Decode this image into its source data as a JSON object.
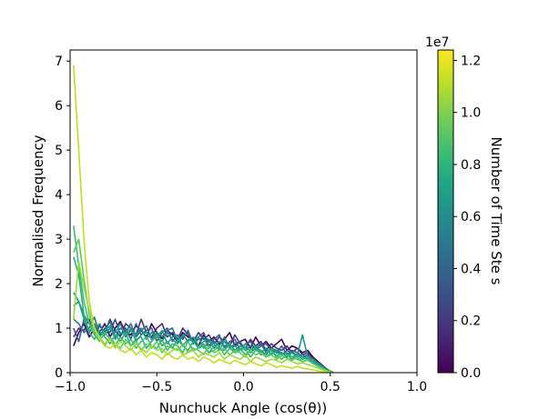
{
  "chart_data": {
    "type": "line",
    "title": "",
    "xlabel": "Nunchuck Angle (cos(θ))",
    "ylabel": "Normalised Frequency",
    "xlim": [
      -1.0,
      1.0
    ],
    "ylim": [
      0,
      7.25
    ],
    "x_ticks": [
      -1.0,
      -0.5,
      0.0,
      0.5,
      1.0
    ],
    "x_tick_labels": [
      "−1.0",
      "−0.5",
      "0.0",
      "0.5",
      "1.0"
    ],
    "y_ticks": [
      0,
      1,
      2,
      3,
      4,
      5,
      6,
      7
    ],
    "y_tick_labels": [
      "0",
      "1",
      "2",
      "3",
      "4",
      "5",
      "6",
      "7"
    ],
    "grid": false,
    "colormap": "viridis",
    "colorbar": {
      "label": "Number of Time Ste  s",
      "range": [
        0.0,
        12400000
      ],
      "offset_text": "1e7",
      "ticks": [
        0.0,
        0.2,
        0.4,
        0.6,
        0.8,
        1.0,
        1.2
      ],
      "tick_labels": [
        "0.0",
        "0.2",
        "0.4",
        "0.6",
        "0.8",
        "1.0",
        "1.2"
      ]
    },
    "x": [
      -0.98,
      -0.95,
      -0.92,
      -0.89,
      -0.86,
      -0.83,
      -0.8,
      -0.77,
      -0.74,
      -0.71,
      -0.68,
      -0.65,
      -0.62,
      -0.59,
      -0.56,
      -0.53,
      -0.5,
      -0.47,
      -0.44,
      -0.41,
      -0.38,
      -0.35,
      -0.32,
      -0.29,
      -0.26,
      -0.23,
      -0.2,
      -0.17,
      -0.14,
      -0.11,
      -0.08,
      -0.05,
      -0.02,
      0.01,
      0.04,
      0.07,
      0.1,
      0.13,
      0.16,
      0.19,
      0.22,
      0.25,
      0.28,
      0.31,
      0.34,
      0.37,
      0.4,
      0.43,
      0.46,
      0.48,
      0.5,
      0.52
    ],
    "series": [
      {
        "timesteps": 100000,
        "color": "#440154",
        "values": [
          0.6,
          0.9,
          1.1,
          0.8,
          1.0,
          0.9,
          1.1,
          0.8,
          1.0,
          1.15,
          0.9,
          0.85,
          1.05,
          0.95,
          0.8,
          1.1,
          0.9,
          0.75,
          0.95,
          0.85,
          0.7,
          0.9,
          0.8,
          0.75,
          0.6,
          0.85,
          0.7,
          0.8,
          0.65,
          0.75,
          0.9,
          0.6,
          0.7,
          0.75,
          0.55,
          0.8,
          0.6,
          0.7,
          0.55,
          0.65,
          0.75,
          0.5,
          0.6,
          0.55,
          0.45,
          0.5,
          0.35,
          0.25,
          0.15,
          0.08,
          0.03,
          0.0
        ]
      },
      {
        "timesteps": 1200000,
        "color": "#46337e",
        "values": [
          0.8,
          1.0,
          0.95,
          1.2,
          0.85,
          1.05,
          0.9,
          1.2,
          0.95,
          0.8,
          1.1,
          1.0,
          0.85,
          1.2,
          0.9,
          0.8,
          1.0,
          1.1,
          0.8,
          0.9,
          0.75,
          1.0,
          0.85,
          0.7,
          0.9,
          0.75,
          0.85,
          0.65,
          0.8,
          0.7,
          0.6,
          0.85,
          0.65,
          0.55,
          0.75,
          0.6,
          0.7,
          0.5,
          0.65,
          0.55,
          0.5,
          0.6,
          0.45,
          0.55,
          0.4,
          0.45,
          0.3,
          0.2,
          0.12,
          0.06,
          0.02,
          0.0
        ]
      },
      {
        "timesteps": 2500000,
        "color": "#365c8d",
        "values": [
          1.0,
          0.7,
          1.2,
          0.9,
          1.1,
          0.8,
          1.0,
          0.9,
          1.2,
          0.85,
          1.0,
          0.75,
          1.1,
          0.85,
          0.95,
          1.0,
          0.7,
          0.9,
          1.0,
          0.7,
          0.85,
          0.75,
          0.95,
          0.65,
          0.8,
          0.9,
          0.6,
          0.75,
          0.85,
          0.55,
          0.7,
          0.75,
          0.5,
          0.65,
          0.7,
          0.5,
          0.6,
          0.65,
          0.5,
          0.45,
          0.6,
          0.4,
          0.5,
          0.45,
          0.35,
          0.4,
          0.3,
          0.22,
          0.14,
          0.08,
          0.03,
          0.0
        ]
      },
      {
        "timesteps": 3700000,
        "color": "#2c728e",
        "values": [
          1.2,
          1.1,
          0.9,
          1.0,
          1.25,
          0.85,
          0.95,
          1.15,
          0.8,
          1.0,
          0.9,
          1.1,
          0.8,
          0.95,
          1.05,
          0.75,
          0.9,
          0.8,
          0.95,
          1.0,
          0.7,
          0.8,
          0.9,
          0.65,
          0.75,
          0.8,
          0.55,
          0.7,
          0.6,
          0.8,
          0.55,
          0.65,
          0.7,
          0.5,
          0.6,
          0.55,
          0.65,
          0.45,
          0.55,
          0.5,
          0.4,
          0.5,
          0.45,
          0.35,
          0.42,
          0.3,
          0.25,
          0.18,
          0.1,
          0.05,
          0.02,
          0.0
        ]
      },
      {
        "timesteps": 5000000,
        "color": "#21918c",
        "values": [
          1.5,
          1.6,
          1.3,
          1.1,
          0.95,
          1.1,
          0.85,
          1.0,
          0.9,
          1.1,
          0.8,
          0.95,
          0.85,
          1.0,
          0.75,
          0.9,
          0.8,
          0.7,
          0.9,
          0.75,
          0.65,
          0.85,
          0.7,
          0.8,
          0.6,
          0.7,
          0.75,
          0.55,
          0.7,
          0.6,
          0.65,
          0.5,
          0.6,
          0.55,
          0.5,
          0.6,
          0.45,
          0.55,
          0.4,
          0.5,
          0.45,
          0.35,
          0.45,
          0.4,
          0.85,
          0.35,
          0.3,
          0.2,
          0.12,
          0.06,
          0.02,
          0.0
        ]
      },
      {
        "timesteps": 6200000,
        "color": "#1fa088",
        "values": [
          1.8,
          1.6,
          1.2,
          0.95,
          1.0,
          0.8,
          0.95,
          1.05,
          0.75,
          0.9,
          0.85,
          1.0,
          0.7,
          0.85,
          0.9,
          0.75,
          0.8,
          0.95,
          0.65,
          0.8,
          0.85,
          0.6,
          0.75,
          0.7,
          0.8,
          0.55,
          0.7,
          0.65,
          0.5,
          0.7,
          0.55,
          0.6,
          0.5,
          0.65,
          0.45,
          0.55,
          0.5,
          0.4,
          0.55,
          0.45,
          0.4,
          0.45,
          0.35,
          0.4,
          0.3,
          0.35,
          0.25,
          0.18,
          0.1,
          0.05,
          0.02,
          0.0
        ]
      },
      {
        "timesteps": 7400000,
        "color": "#28ae80",
        "values": [
          2.6,
          2.2,
          1.3,
          0.9,
          0.75,
          0.95,
          0.8,
          0.65,
          0.85,
          0.7,
          0.9,
          0.6,
          0.75,
          0.8,
          0.55,
          0.7,
          0.85,
          0.6,
          0.7,
          0.55,
          0.75,
          0.6,
          0.5,
          0.7,
          0.55,
          0.65,
          0.45,
          0.6,
          0.55,
          0.5,
          0.65,
          0.45,
          0.55,
          0.4,
          0.5,
          0.55,
          0.4,
          0.45,
          0.5,
          0.35,
          0.45,
          0.4,
          0.3,
          0.4,
          0.35,
          0.3,
          0.22,
          0.15,
          0.08,
          0.04,
          0.01,
          0.0
        ]
      },
      {
        "timesteps": 8700000,
        "color": "#3fbc73",
        "values": [
          3.3,
          2.4,
          1.6,
          1.1,
          0.85,
          0.7,
          0.9,
          0.75,
          0.6,
          0.8,
          0.65,
          0.75,
          0.55,
          0.7,
          0.8,
          0.6,
          0.55,
          0.75,
          0.5,
          0.65,
          0.6,
          0.45,
          0.7,
          0.5,
          0.55,
          0.6,
          0.45,
          0.5,
          0.6,
          0.4,
          0.55,
          0.45,
          0.5,
          0.55,
          0.35,
          0.5,
          0.45,
          0.35,
          0.45,
          0.4,
          0.3,
          0.4,
          0.35,
          0.3,
          0.25,
          0.3,
          0.2,
          0.14,
          0.08,
          0.04,
          0.01,
          0.0
        ]
      },
      {
        "timesteps": 9900000,
        "color": "#5ec962",
        "values": [
          2.7,
          3.0,
          2.1,
          1.3,
          0.9,
          0.75,
          0.6,
          0.8,
          0.65,
          0.55,
          0.75,
          0.6,
          0.7,
          0.5,
          0.65,
          0.55,
          0.7,
          0.45,
          0.6,
          0.55,
          0.5,
          0.65,
          0.45,
          0.55,
          0.5,
          0.4,
          0.6,
          0.45,
          0.5,
          0.55,
          0.4,
          0.5,
          0.45,
          0.35,
          0.5,
          0.4,
          0.45,
          0.35,
          0.4,
          0.3,
          0.38,
          0.32,
          0.28,
          0.35,
          0.25,
          0.28,
          0.2,
          0.14,
          0.08,
          0.04,
          0.01,
          0.0
        ]
      },
      {
        "timesteps": 11200000,
        "color": "#9bd93c",
        "values": [
          1.2,
          2.5,
          1.9,
          1.4,
          1.0,
          0.8,
          0.65,
          0.75,
          0.55,
          0.7,
          0.6,
          0.5,
          0.65,
          0.55,
          0.45,
          0.6,
          0.5,
          0.55,
          0.4,
          0.5,
          0.55,
          0.4,
          0.45,
          0.5,
          0.35,
          0.45,
          0.4,
          0.35,
          0.45,
          0.3,
          0.4,
          0.35,
          0.3,
          0.4,
          0.25,
          0.35,
          0.3,
          0.25,
          0.3,
          0.28,
          0.22,
          0.3,
          0.25,
          0.2,
          0.22,
          0.18,
          0.14,
          0.1,
          0.06,
          0.03,
          0.01,
          0.0
        ]
      },
      {
        "timesteps": 12400000,
        "color": "#bddf26",
        "values": [
          6.9,
          5.0,
          3.0,
          1.6,
          1.0,
          0.75,
          0.6,
          0.55,
          0.65,
          0.5,
          0.45,
          0.55,
          0.4,
          0.5,
          0.35,
          0.45,
          0.4,
          0.3,
          0.45,
          0.35,
          0.3,
          0.4,
          0.3,
          0.35,
          0.25,
          0.35,
          0.3,
          0.22,
          0.3,
          0.25,
          0.2,
          0.28,
          0.22,
          0.18,
          0.25,
          0.2,
          0.15,
          0.22,
          0.18,
          0.12,
          0.16,
          0.12,
          0.1,
          0.14,
          0.1,
          0.08,
          0.06,
          0.04,
          0.02,
          0.01,
          0.0,
          0.0
        ]
      }
    ]
  }
}
